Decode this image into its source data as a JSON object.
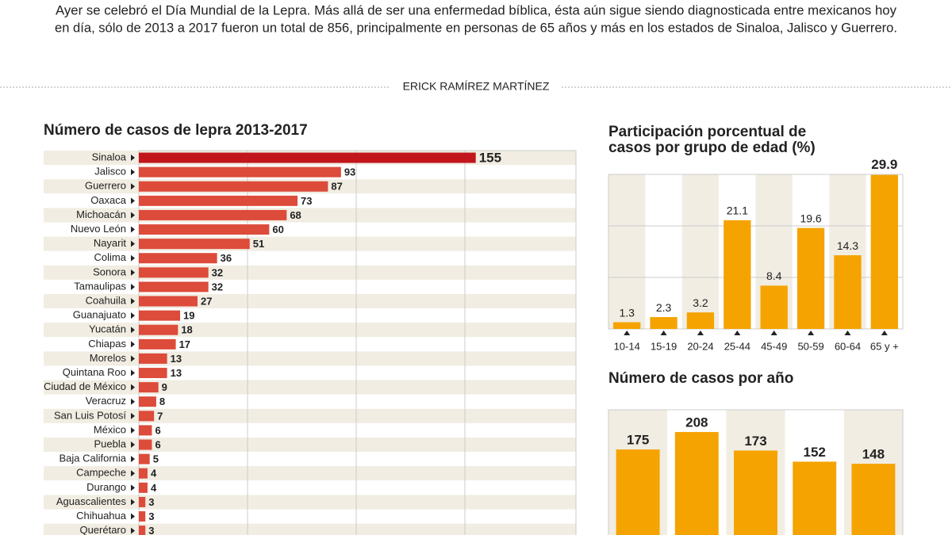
{
  "intro": [
    "Ayer se celebró el Día Mundial de la Lepra. Más allá de ser una enfermedad bíblica, ésta aún sigue siendo diagnosticada entre mexicanos hoy",
    "en día, sólo de 2013 a 2017 fueron un total de 856, principalmente en personas de 65 años y más en los estados de Sinaloa, Jalisco y Guerrero."
  ],
  "author": "ERICK RAMÍREZ MARTÍNEZ",
  "chart_data": [
    {
      "type": "hbar",
      "title": "Número de casos de lepra 2013-2017",
      "categories": [
        "Sinaloa",
        "Jalisco",
        "Guerrero",
        "Oaxaca",
        "Michoacán",
        "Nuevo León",
        "Nayarit",
        "Colima",
        "Sonora",
        "Tamaulipas",
        "Coahuila",
        "Guanajuato",
        "Yucatán",
        "Chiapas",
        "Morelos",
        "Quintana Roo",
        "Ciudad de México",
        "Veracruz",
        "San Luis Potosí",
        "México",
        "Puebla",
        "Baja California",
        "Campeche",
        "Durango",
        "Aguascalientes",
        "Chihuahua",
        "Querétaro"
      ],
      "values": [
        155,
        93,
        87,
        73,
        68,
        60,
        51,
        36,
        32,
        32,
        27,
        19,
        18,
        17,
        13,
        13,
        9,
        8,
        7,
        6,
        6,
        5,
        4,
        4,
        3,
        3,
        3
      ],
      "color": "#dd4b3a",
      "highlight_color": "#c0161c",
      "xlim": [
        0,
        200
      ],
      "grid": true
    },
    {
      "type": "bar",
      "title": [
        "Participación porcentual de",
        "casos por grupo de edad (%)"
      ],
      "categories": [
        "10-14",
        "15-19",
        "20-24",
        "25-44",
        "45-49",
        "50-59",
        "60-64",
        "65 y +"
      ],
      "values": [
        1.3,
        2.3,
        3.2,
        21.1,
        8.4,
        19.6,
        14.3,
        29.9
      ],
      "color": "#f5a300",
      "ylim": [
        0,
        30
      ],
      "grid": true
    },
    {
      "type": "bar",
      "title": "Número de casos por año",
      "categories": [
        null,
        null,
        null,
        null,
        null
      ],
      "values": [
        175,
        208,
        173,
        152,
        148
      ],
      "color": "#f5a300",
      "ylim": [
        0,
        250
      ],
      "grid": false
    }
  ]
}
